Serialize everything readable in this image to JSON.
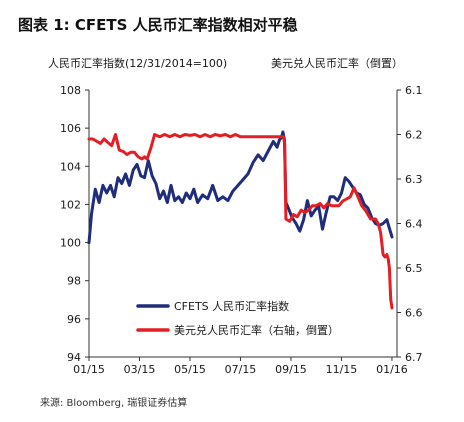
{
  "figure": {
    "title": "图表 1: CFETS 人民币汇率指数相对平稳",
    "source": "来源: Bloomberg, 瑞银证券估算"
  },
  "chart_data": {
    "type": "line",
    "x_ticks": [
      "01/15",
      "03/15",
      "05/15",
      "07/15",
      "09/15",
      "11/15",
      "01/16"
    ],
    "y_left_ticks": [
      94,
      96,
      98,
      100,
      102,
      104,
      106,
      108
    ],
    "y_right_ticks": [
      6.1,
      6.2,
      6.3,
      6.4,
      6.5,
      6.6,
      6.7
    ],
    "y_left_label": "人民币汇率指数(12/31/2014=100)",
    "y_right_label": "美元兑人民币汇率（倒置）",
    "ylim_left": [
      94,
      108
    ],
    "ylim_right": [
      6.1,
      6.7
    ],
    "right_axis_inverted": true,
    "x_unit": "months since 01/15",
    "xlim": [
      0,
      12.2
    ],
    "grid": false,
    "legend_position": "bottom-center",
    "series": [
      {
        "name": "CFETS 人民币汇率指数",
        "axis": "left",
        "color": "#1f2d7a",
        "x": [
          0.0,
          0.1,
          0.25,
          0.4,
          0.55,
          0.7,
          0.85,
          1.0,
          1.15,
          1.3,
          1.45,
          1.6,
          1.75,
          1.9,
          2.05,
          2.2,
          2.35,
          2.5,
          2.65,
          2.8,
          2.95,
          3.1,
          3.25,
          3.4,
          3.55,
          3.7,
          3.85,
          4.0,
          4.15,
          4.3,
          4.5,
          4.7,
          4.9,
          5.1,
          5.3,
          5.5,
          5.7,
          5.9,
          6.1,
          6.3,
          6.5,
          6.7,
          6.9,
          7.1,
          7.3,
          7.45,
          7.55,
          7.62,
          7.68,
          7.74,
          7.8,
          7.9,
          8.05,
          8.2,
          8.35,
          8.5,
          8.65,
          8.8,
          8.95,
          9.1,
          9.25,
          9.4,
          9.55,
          9.7,
          9.85,
          10.0,
          10.15,
          10.3,
          10.45,
          10.6,
          10.75,
          10.9,
          11.05,
          11.2,
          11.35,
          11.5,
          11.65,
          11.8,
          11.93,
          12.0
        ],
        "values": [
          100.0,
          101.5,
          102.8,
          102.1,
          103.0,
          102.6,
          103.0,
          102.4,
          103.4,
          103.1,
          103.6,
          103.0,
          103.8,
          104.1,
          103.5,
          103.4,
          104.3,
          103.5,
          103.1,
          102.3,
          102.7,
          102.1,
          103.0,
          102.2,
          102.4,
          102.1,
          102.6,
          102.3,
          102.8,
          102.1,
          102.5,
          102.3,
          103.0,
          102.2,
          102.4,
          102.2,
          102.7,
          103.0,
          103.3,
          103.6,
          104.2,
          104.6,
          104.3,
          104.8,
          105.3,
          105.0,
          105.4,
          105.5,
          105.8,
          105.4,
          102.1,
          101.8,
          101.3,
          101.0,
          100.6,
          101.2,
          102.2,
          101.4,
          101.7,
          101.9,
          100.7,
          101.6,
          102.4,
          102.4,
          102.2,
          102.6,
          103.4,
          103.2,
          102.9,
          102.6,
          102.5,
          102.0,
          101.8,
          101.3,
          101.0,
          100.9,
          101.0,
          101.2,
          100.6,
          100.3
        ]
      },
      {
        "name": "美元兑人民币汇率（右轴，倒置）",
        "axis": "right",
        "color": "#e31e24",
        "x": [
          0.0,
          0.15,
          0.3,
          0.45,
          0.6,
          0.75,
          0.9,
          1.05,
          1.2,
          1.35,
          1.5,
          1.65,
          1.8,
          1.95,
          2.1,
          2.2,
          2.3,
          2.45,
          2.6,
          2.8,
          3.0,
          3.2,
          3.4,
          3.6,
          3.8,
          4.0,
          4.2,
          4.4,
          4.6,
          4.8,
          5.0,
          5.2,
          5.4,
          5.6,
          5.8,
          6.0,
          6.2,
          6.4,
          6.6,
          6.8,
          7.0,
          7.2,
          7.4,
          7.6,
          7.7,
          7.75,
          7.8,
          7.95,
          8.1,
          8.25,
          8.4,
          8.55,
          8.7,
          8.85,
          9.0,
          9.15,
          9.3,
          9.45,
          9.6,
          9.75,
          9.9,
          10.05,
          10.2,
          10.35,
          10.5,
          10.65,
          10.8,
          10.95,
          11.05,
          11.15,
          11.25,
          11.35,
          11.45,
          11.55,
          11.65,
          11.72,
          11.8,
          11.85,
          11.9,
          11.95,
          12.0
        ],
        "values": [
          6.21,
          6.21,
          6.215,
          6.22,
          6.21,
          6.218,
          6.225,
          6.2,
          6.235,
          6.238,
          6.245,
          6.24,
          6.24,
          6.25,
          6.255,
          6.25,
          6.255,
          6.23,
          6.2,
          6.205,
          6.2,
          6.205,
          6.2,
          6.205,
          6.2,
          6.202,
          6.2,
          6.205,
          6.2,
          6.205,
          6.2,
          6.203,
          6.2,
          6.205,
          6.2,
          6.205,
          6.205,
          6.205,
          6.205,
          6.205,
          6.205,
          6.205,
          6.205,
          6.205,
          6.205,
          6.22,
          6.39,
          6.395,
          6.38,
          6.385,
          6.37,
          6.375,
          6.37,
          6.36,
          6.36,
          6.355,
          6.365,
          6.355,
          6.36,
          6.36,
          6.36,
          6.35,
          6.345,
          6.34,
          6.32,
          6.34,
          6.36,
          6.37,
          6.38,
          6.39,
          6.39,
          6.39,
          6.4,
          6.42,
          6.47,
          6.475,
          6.47,
          6.48,
          6.5,
          6.57,
          6.59
        ]
      }
    ]
  }
}
